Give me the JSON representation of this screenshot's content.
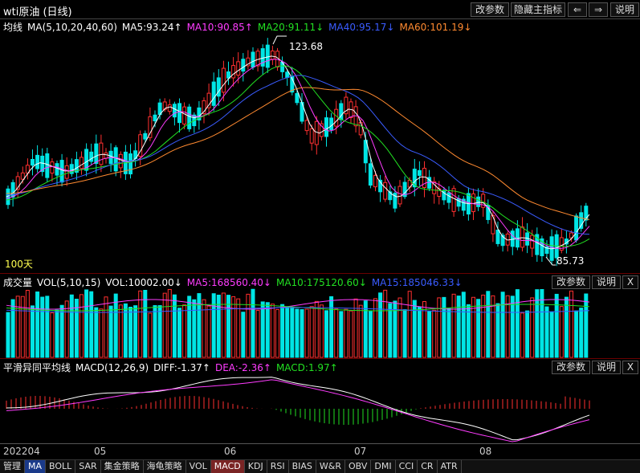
{
  "window": {
    "title": "wti原油 (日线)",
    "buttons": {
      "params": "改参数",
      "hide_indicator": "隐藏主指标",
      "back": "⇐",
      "forward": "⇒",
      "help": "说明"
    }
  },
  "main_panel": {
    "legend": {
      "name": "均线",
      "params": "MA(5,10,20,40,60)",
      "ma5": "MA5:93.24↑",
      "ma10": "MA10:90.85↑",
      "ma20": "MA20:91.11↓",
      "ma40": "MA40:95.17↓",
      "ma60": "MA60:101.19↓"
    },
    "high_label": "123.68",
    "low_label": "85.73",
    "days_label": "100天",
    "colors": {
      "ma5": "#ffffff",
      "ma10": "#ff3cff",
      "ma20": "#22e022",
      "ma40": "#3a5cff",
      "ma60": "#ff8a30",
      "up": "#ff3030",
      "down": "#00e5e5"
    }
  },
  "volume_panel": {
    "legend": {
      "name": "成交量",
      "params": "VOL(5,10,15)",
      "vol": "VOL:10002.00↓",
      "ma5": "MA5:168560.40↓",
      "ma10": "MA10:175120.60↓",
      "ma15": "MA15:185046.33↓"
    },
    "buttons": {
      "params": "改参数",
      "help": "说明",
      "close": "X"
    }
  },
  "macd_panel": {
    "legend": {
      "name": "平滑异同平均线",
      "params": "MACD(12,26,9)",
      "diff": "DIFF:-1.37↑",
      "dea": "DEA:-2.36↑",
      "macd": "MACD:1.97↑"
    },
    "buttons": {
      "params": "改参数",
      "help": "说明",
      "close": "X"
    }
  },
  "x_axis": [
    "202204",
    "05",
    "06",
    "07",
    "08"
  ],
  "tabs": [
    "管理",
    "MA",
    "BOLL",
    "SAR",
    "集金策略",
    "海龟策略",
    "VOL",
    "MACD",
    "KDJ",
    "RSI",
    "BIAS",
    "W&R",
    "OBV",
    "DMI",
    "CCI",
    "CR",
    "ATR"
  ],
  "active_tab": "MA",
  "selected_tab": "MACD"
}
